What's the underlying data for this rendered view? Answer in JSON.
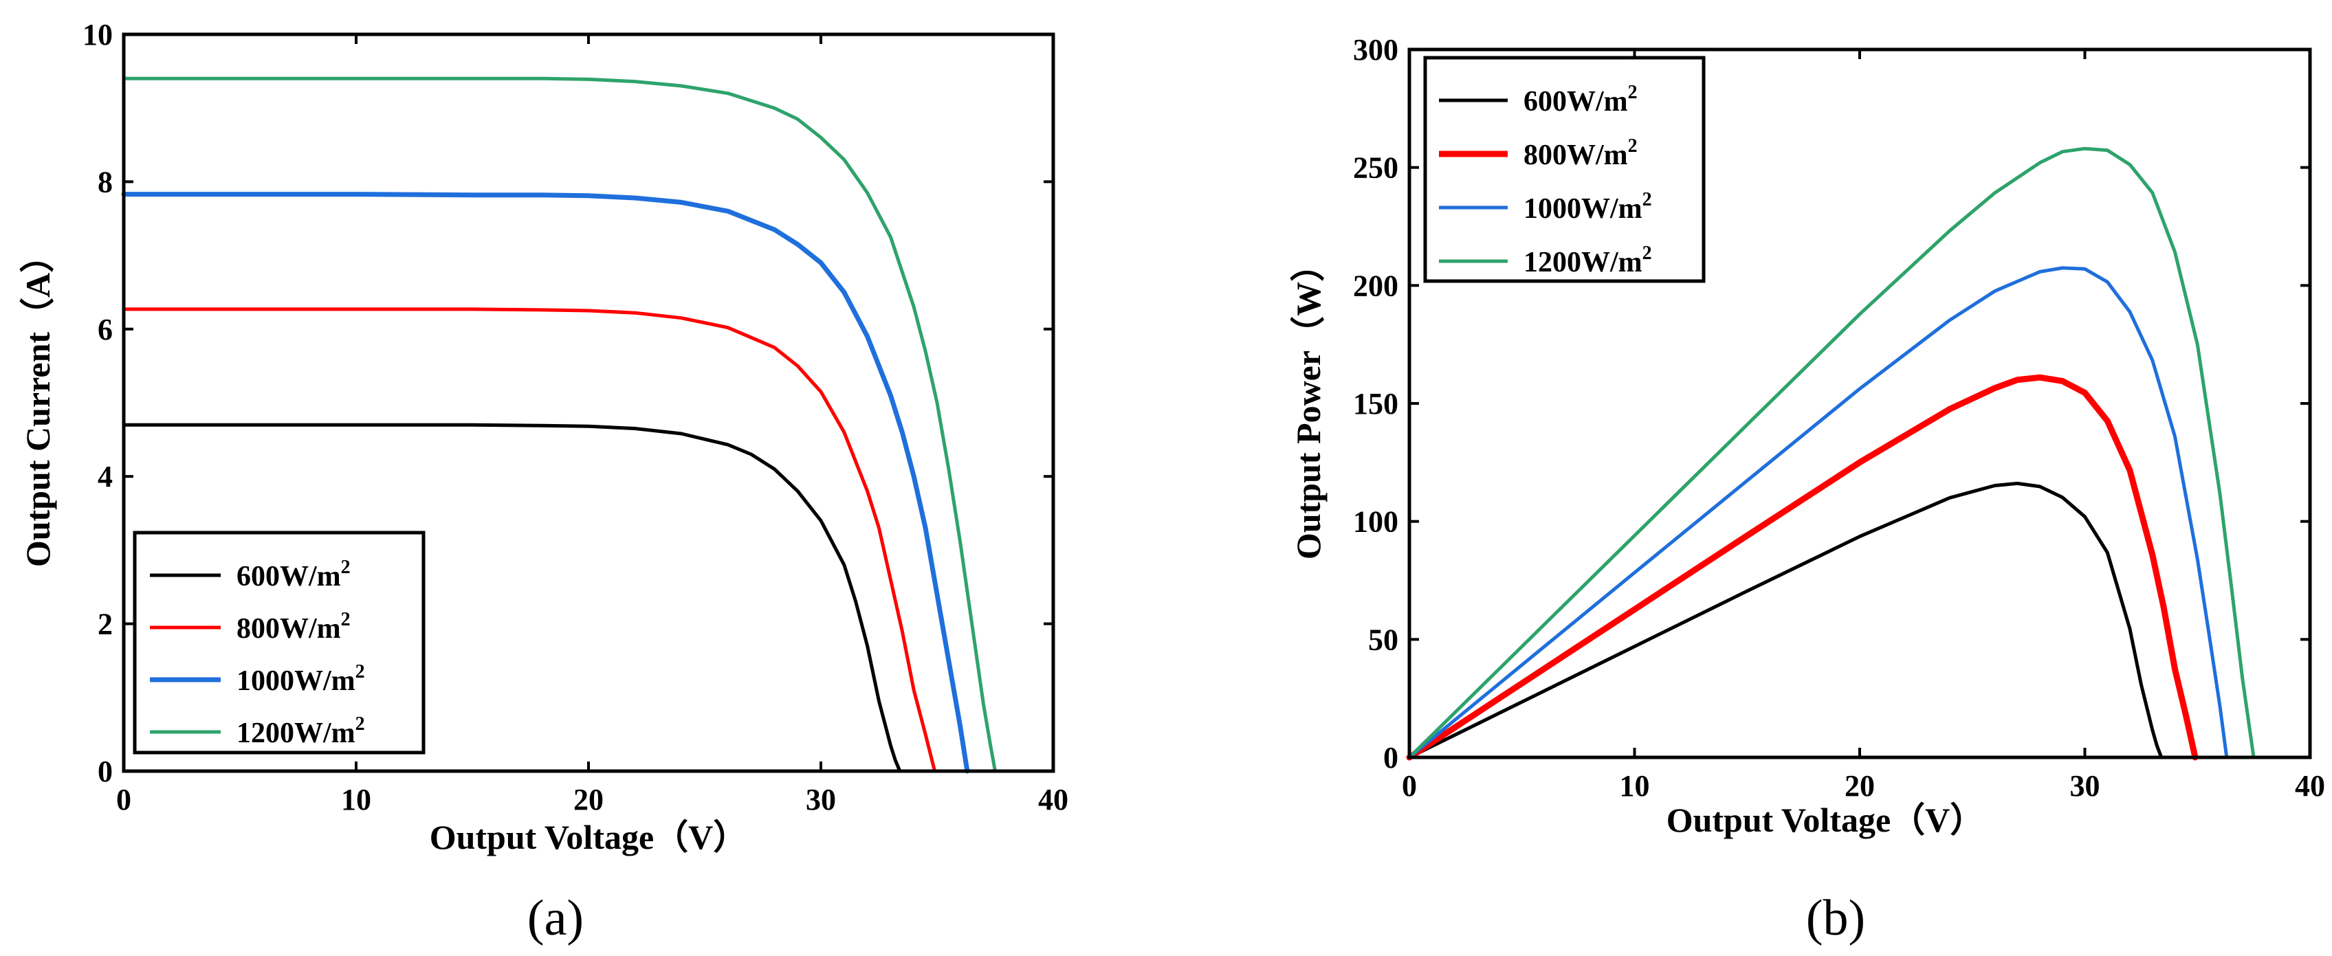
{
  "figure": {
    "panel_labels": [
      "(a)",
      "(b)"
    ],
    "legend_unit_suffix": "2"
  },
  "chart_data": [
    {
      "type": "line",
      "panel": "(a)",
      "title": "",
      "xlabel": "Output Voltage（V）",
      "ylabel": "Output Current（A）",
      "xlim": [
        0,
        40
      ],
      "ylim": [
        0,
        10
      ],
      "xticks": [
        0,
        10,
        20,
        30,
        40
      ],
      "yticks": [
        0,
        2,
        4,
        6,
        8,
        10
      ],
      "grid": false,
      "legend_position": "bottom-left",
      "series": [
        {
          "name": "600W/m",
          "color": "#000000",
          "x": [
            0,
            5,
            10,
            15,
            18,
            20,
            22,
            24,
            26,
            27,
            28,
            29,
            30,
            31,
            31.5,
            32,
            32.5,
            33,
            33.2,
            33.4
          ],
          "y": [
            4.7,
            4.7,
            4.7,
            4.7,
            4.69,
            4.68,
            4.65,
            4.58,
            4.43,
            4.3,
            4.1,
            3.8,
            3.4,
            2.8,
            2.3,
            1.7,
            0.95,
            0.35,
            0.15,
            0
          ]
        },
        {
          "name": "800W/m",
          "color": "#ff0000",
          "x": [
            0,
            5,
            10,
            15,
            18,
            20,
            22,
            24,
            26,
            28,
            29,
            30,
            31,
            32,
            32.5,
            33,
            33.5,
            34,
            34.5,
            34.9
          ],
          "y": [
            6.27,
            6.27,
            6.27,
            6.27,
            6.26,
            6.25,
            6.22,
            6.15,
            6.02,
            5.75,
            5.5,
            5.15,
            4.6,
            3.8,
            3.3,
            2.6,
            1.9,
            1.1,
            0.5,
            0
          ]
        },
        {
          "name": "1000W/m",
          "color": "#1f6fdc",
          "x": [
            0,
            5,
            10,
            15,
            18,
            20,
            22,
            24,
            26,
            28,
            29,
            30,
            31,
            32,
            33,
            33.5,
            34,
            34.5,
            35,
            35.5,
            36,
            36.3
          ],
          "y": [
            7.83,
            7.83,
            7.83,
            7.82,
            7.82,
            7.81,
            7.78,
            7.72,
            7.6,
            7.35,
            7.15,
            6.9,
            6.5,
            5.9,
            5.1,
            4.6,
            4.0,
            3.3,
            2.4,
            1.5,
            0.6,
            0
          ]
        },
        {
          "name": "1200W/m",
          "color": "#2ea36b",
          "x": [
            0,
            5,
            10,
            15,
            18,
            20,
            22,
            24,
            26,
            28,
            29,
            30,
            31,
            32,
            33,
            34,
            34.5,
            35,
            35.5,
            36,
            36.5,
            37,
            37.3,
            37.5
          ],
          "y": [
            9.4,
            9.4,
            9.4,
            9.4,
            9.4,
            9.39,
            9.36,
            9.3,
            9.2,
            9.0,
            8.85,
            8.6,
            8.3,
            7.85,
            7.25,
            6.3,
            5.7,
            5.0,
            4.1,
            3.1,
            2.0,
            0.9,
            0.35,
            0
          ]
        }
      ]
    },
    {
      "type": "line",
      "panel": "(b)",
      "title": "",
      "xlabel": "Output Voltage（V）",
      "ylabel": "Output Power（W）",
      "xlim": [
        0,
        40
      ],
      "ylim": [
        0,
        300
      ],
      "xticks": [
        0,
        10,
        20,
        30,
        40
      ],
      "yticks": [
        0,
        50,
        100,
        150,
        200,
        250,
        300
      ],
      "grid": false,
      "legend_position": "top-left",
      "series": [
        {
          "name": "600W/m",
          "color": "#000000",
          "x": [
            0,
            5,
            10,
            15,
            20,
            24,
            26,
            27,
            28,
            29,
            30,
            31,
            32,
            32.5,
            33,
            33.2,
            33.4
          ],
          "y": [
            0,
            23.5,
            47,
            70.5,
            93.6,
            110,
            115.2,
            116.1,
            114.8,
            110.2,
            102,
            86.8,
            54.4,
            30.9,
            11.6,
            5,
            0
          ]
        },
        {
          "name": "800W/m",
          "color": "#ff0000",
          "x": [
            0,
            5,
            10,
            15,
            20,
            24,
            26,
            27,
            28,
            29,
            30,
            31,
            32,
            33,
            33.5,
            34,
            34.5,
            34.9
          ],
          "y": [
            0,
            31.4,
            62.7,
            94,
            125,
            147.6,
            156.5,
            160,
            161,
            159.5,
            154.5,
            142.6,
            121.6,
            85.8,
            63.7,
            37.4,
            17.3,
            0
          ]
        },
        {
          "name": "1000W/m",
          "color": "#1f6fdc",
          "x": [
            0,
            5,
            10,
            15,
            20,
            24,
            26,
            28,
            29,
            30,
            31,
            32,
            33,
            34,
            35,
            35.5,
            36,
            36.3
          ],
          "y": [
            0,
            39.2,
            78.3,
            117.3,
            156.2,
            185.3,
            197.6,
            205.8,
            207.4,
            207,
            201.5,
            188.8,
            168.3,
            136,
            84,
            53.3,
            21.6,
            0
          ]
        },
        {
          "name": "1200W/m",
          "color": "#2ea36b",
          "x": [
            0,
            5,
            10,
            15,
            20,
            24,
            26,
            28,
            29,
            30,
            31,
            32,
            33,
            34,
            35,
            36,
            36.5,
            37,
            37.5
          ],
          "y": [
            0,
            47,
            94,
            141,
            187.8,
            223.2,
            239.2,
            252,
            256.7,
            258,
            257.3,
            251.2,
            239.3,
            214.2,
            175,
            111.6,
            73,
            33.3,
            0
          ]
        }
      ]
    }
  ]
}
